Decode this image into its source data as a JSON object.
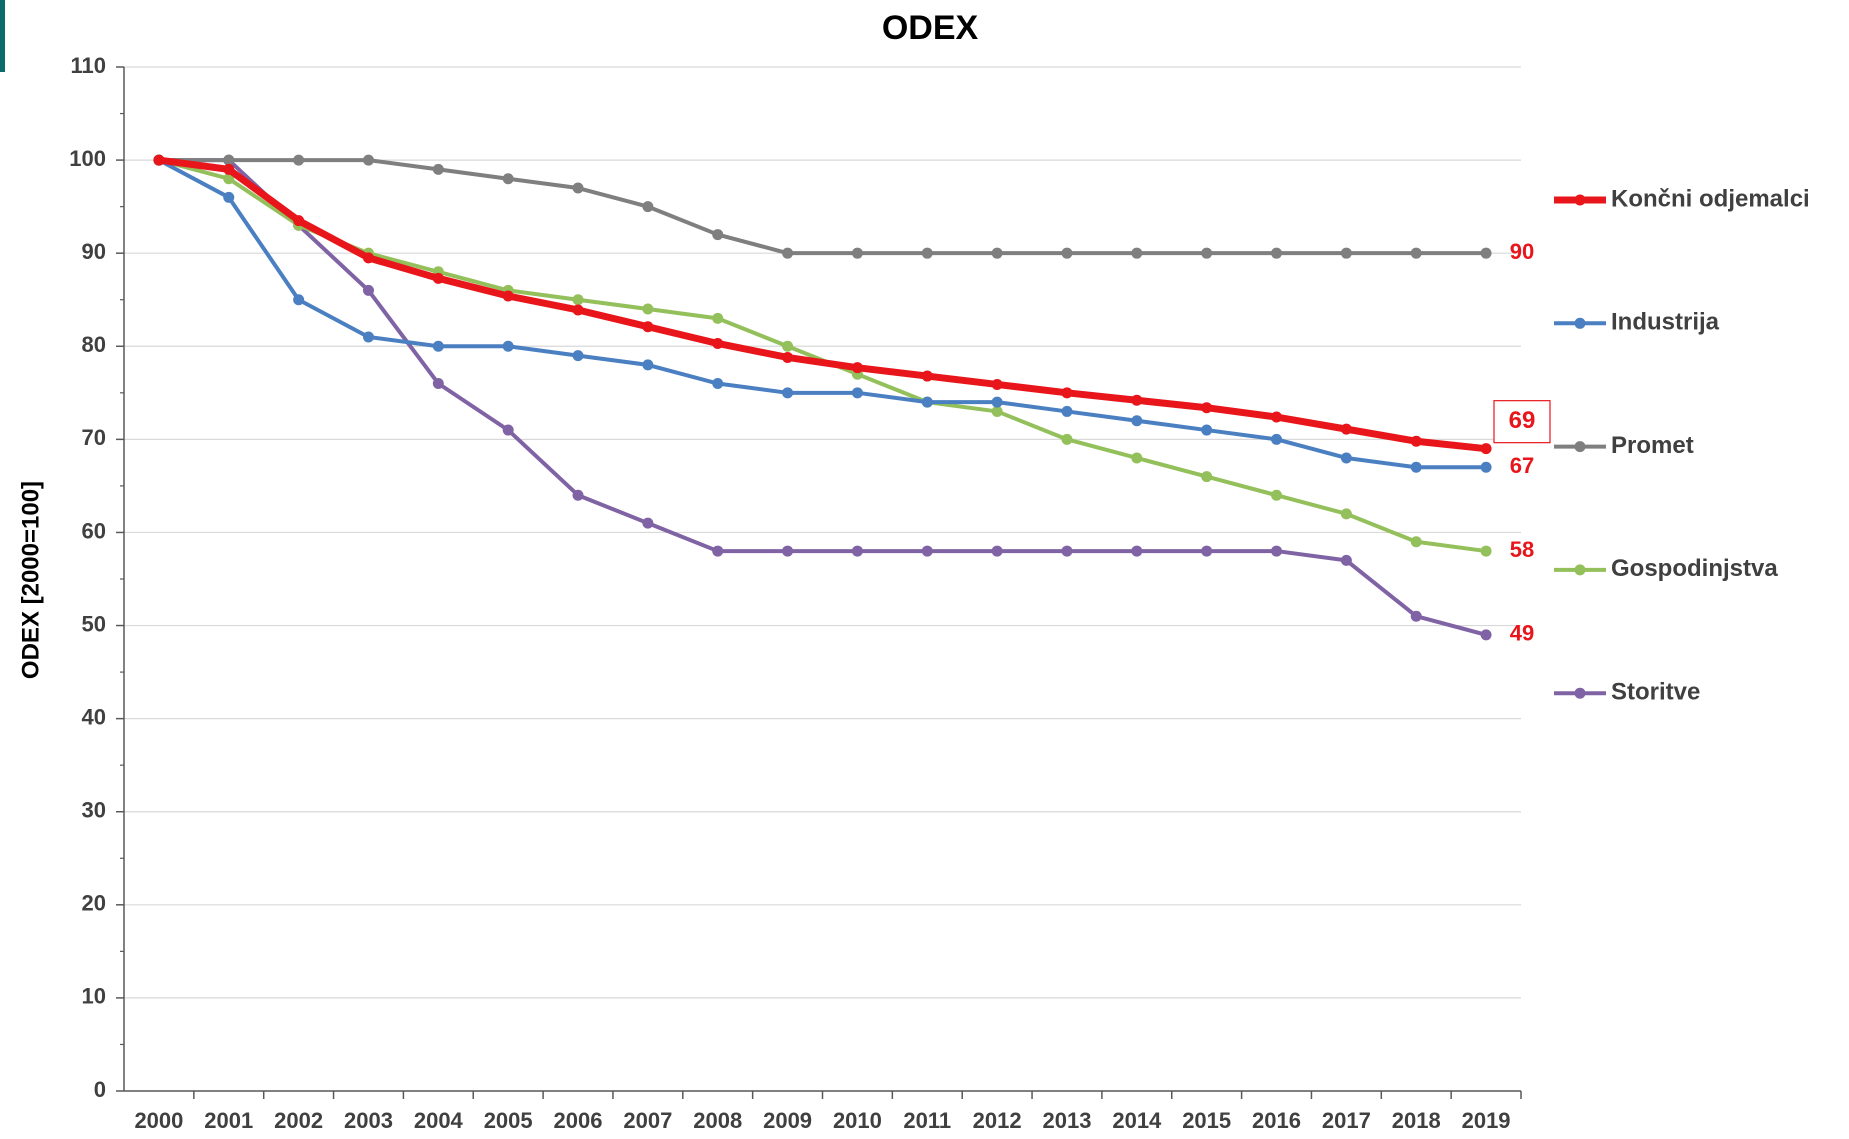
{
  "chart_data": {
    "type": "line",
    "title": "ODEX",
    "y_label": "ODEX [2000=100]",
    "categories": [
      "2000",
      "2001",
      "2002",
      "2003",
      "2004",
      "2005",
      "2006",
      "2007",
      "2008",
      "2009",
      "2010",
      "2011",
      "2012",
      "2013",
      "2014",
      "2015",
      "2016",
      "2017",
      "2018",
      "2019"
    ],
    "series": [
      {
        "name": "Končni odjemalci",
        "color": "#e8161b",
        "line_width": 7,
        "values": [
          100,
          99,
          93.5,
          89.5,
          87.3,
          85.4,
          83.9,
          82.1,
          80.3,
          78.8,
          77.7,
          76.8,
          75.9,
          75.0,
          74.2,
          73.4,
          72.4,
          71.1,
          69.8,
          69
        ]
      },
      {
        "name": "Industrija",
        "color": "#4a7fc1",
        "line_width": 4,
        "values": [
          100,
          96,
          85,
          81,
          80,
          80,
          79,
          78,
          76,
          75,
          75,
          74,
          74,
          73,
          72,
          71,
          70,
          68,
          67,
          67
        ]
      },
      {
        "name": "Promet",
        "color": "#7f7f7f",
        "line_width": 4,
        "values": [
          100,
          100,
          100,
          100,
          99,
          98,
          97,
          95,
          92,
          90,
          90,
          90,
          90,
          90,
          90,
          90,
          90,
          90,
          90,
          90
        ]
      },
      {
        "name": "Gospodinjstva",
        "color": "#93c05a",
        "line_width": 4,
        "values": [
          100,
          98,
          93,
          90,
          88,
          86,
          85,
          84,
          83,
          80,
          77,
          74,
          73,
          70,
          68,
          66,
          64,
          62,
          59,
          58
        ]
      },
      {
        "name": "Storitve",
        "color": "#8063a4",
        "line_width": 4,
        "values": [
          100,
          100,
          93,
          86,
          76,
          71,
          64,
          61,
          58,
          58,
          58,
          58,
          58,
          58,
          58,
          58,
          58,
          57,
          51,
          49
        ]
      }
    ],
    "end_label_color": "#e8161b",
    "ylim": [
      0,
      110
    ],
    "yticks": [
      0,
      10,
      20,
      30,
      40,
      50,
      60,
      70,
      80,
      90,
      100,
      110
    ],
    "grid": true
  }
}
